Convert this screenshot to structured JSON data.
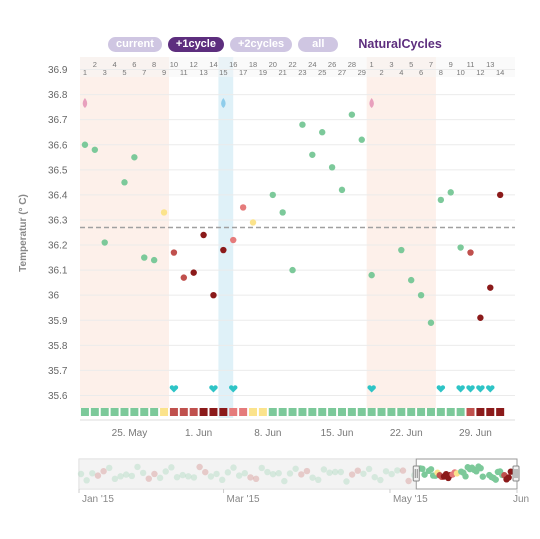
{
  "header": {
    "buttons": [
      {
        "label": "current",
        "active": false
      },
      {
        "label": "+1cycle",
        "active": true
      },
      {
        "label": "+2cycles",
        "active": false
      },
      {
        "label": "all",
        "active": false
      }
    ],
    "brand": "NaturalCycles"
  },
  "colors": {
    "purple": "#5d2e7e",
    "pill_inactive": "#cfc6e2",
    "green": "#7cc99a",
    "light_red": "#e57b7b",
    "red": "#c0504d",
    "dark_red": "#8b1a1a",
    "yellow": "#fbe38c",
    "pink_drop": "#e8a0bd",
    "blue_drop": "#8fcdeb",
    "heart": "#2ec4c6",
    "period_band": "#fdf0ea",
    "ovulation_band": "#dff1f8",
    "coverline": "#a0a0a0"
  },
  "chart_data": {
    "type": "scatter",
    "ylabel": "Temperatur (° C)",
    "ylim": [
      35.55,
      36.95
    ],
    "y_ticks": [
      "36.9",
      "36.8",
      "36.7",
      "36.6",
      "36.5",
      "36.4",
      "36.3",
      "36.2",
      "36.1",
      "36",
      "35.9",
      "35.8",
      "35.7",
      "35.6"
    ],
    "day_range": [
      0,
      43
    ],
    "coverline": 36.27,
    "cycle_day_top": [
      1,
      2,
      3,
      4,
      5,
      6,
      7,
      8,
      9,
      10,
      11,
      12,
      13,
      14,
      15,
      16,
      17,
      18,
      19,
      20,
      21,
      22,
      23,
      24,
      25,
      26,
      27,
      28,
      29,
      1,
      2,
      3,
      4,
      5,
      6,
      7,
      8,
      9,
      10,
      11,
      12,
      13,
      14
    ],
    "date_ticks": [
      {
        "day": 4.5,
        "label": "25. May"
      },
      {
        "day": 11.5,
        "label": "1. Jun"
      },
      {
        "day": 18.5,
        "label": "8. Jun"
      },
      {
        "day": 25.5,
        "label": "15. Jun"
      },
      {
        "day": 32.5,
        "label": "22. Jun"
      },
      {
        "day": 39.5,
        "label": "29. Jun"
      }
    ],
    "period_bands": [
      [
        0,
        8
      ],
      [
        29,
        35
      ]
    ],
    "ovulation_band": [
      14,
      15
    ],
    "drops": [
      {
        "day": 0,
        "type": "period"
      },
      {
        "day": 14,
        "type": "ovulation"
      },
      {
        "day": 29,
        "type": "period"
      }
    ],
    "hearts": [
      9,
      13,
      15,
      29,
      36,
      38,
      39,
      40,
      41
    ],
    "points": [
      {
        "day": 0,
        "temp": 36.6,
        "c": "green"
      },
      {
        "day": 1,
        "temp": 36.58,
        "c": "green"
      },
      {
        "day": 2,
        "temp": 36.21,
        "c": "green"
      },
      {
        "day": 4,
        "temp": 36.45,
        "c": "green"
      },
      {
        "day": 5,
        "temp": 36.55,
        "c": "green"
      },
      {
        "day": 6,
        "temp": 36.15,
        "c": "green"
      },
      {
        "day": 7,
        "temp": 36.14,
        "c": "green"
      },
      {
        "day": 8,
        "temp": 36.33,
        "c": "yellow"
      },
      {
        "day": 9,
        "temp": 36.17,
        "c": "red"
      },
      {
        "day": 10,
        "temp": 36.07,
        "c": "red"
      },
      {
        "day": 11,
        "temp": 36.09,
        "c": "dark_red"
      },
      {
        "day": 12,
        "temp": 36.24,
        "c": "dark_red"
      },
      {
        "day": 13,
        "temp": 36.0,
        "c": "dark_red"
      },
      {
        "day": 14,
        "temp": 36.18,
        "c": "dark_red"
      },
      {
        "day": 15,
        "temp": 36.22,
        "c": "light_red"
      },
      {
        "day": 16,
        "temp": 36.35,
        "c": "light_red"
      },
      {
        "day": 17,
        "temp": 36.29,
        "c": "yellow"
      },
      {
        "day": 19,
        "temp": 36.4,
        "c": "green"
      },
      {
        "day": 20,
        "temp": 36.33,
        "c": "green"
      },
      {
        "day": 21,
        "temp": 36.1,
        "c": "green"
      },
      {
        "day": 22,
        "temp": 36.68,
        "c": "green"
      },
      {
        "day": 23,
        "temp": 36.56,
        "c": "green"
      },
      {
        "day": 24,
        "temp": 36.65,
        "c": "green"
      },
      {
        "day": 25,
        "temp": 36.51,
        "c": "green"
      },
      {
        "day": 26,
        "temp": 36.42,
        "c": "green"
      },
      {
        "day": 27,
        "temp": 36.72,
        "c": "green"
      },
      {
        "day": 28,
        "temp": 36.62,
        "c": "green"
      },
      {
        "day": 29,
        "temp": 36.08,
        "c": "green"
      },
      {
        "day": 32,
        "temp": 36.18,
        "c": "green"
      },
      {
        "day": 33,
        "temp": 36.06,
        "c": "green"
      },
      {
        "day": 34,
        "temp": 36.0,
        "c": "green"
      },
      {
        "day": 35,
        "temp": 35.89,
        "c": "green"
      },
      {
        "day": 36,
        "temp": 36.38,
        "c": "green"
      },
      {
        "day": 37,
        "temp": 36.41,
        "c": "green"
      },
      {
        "day": 38,
        "temp": 36.19,
        "c": "green"
      },
      {
        "day": 39,
        "temp": 36.17,
        "c": "red"
      },
      {
        "day": 40,
        "temp": 35.91,
        "c": "dark_red"
      },
      {
        "day": 41,
        "temp": 36.03,
        "c": "dark_red"
      },
      {
        "day": 42,
        "temp": 36.4,
        "c": "dark_red"
      }
    ],
    "status_squares": [
      "green",
      "green",
      "green",
      "green",
      "green",
      "green",
      "green",
      "green",
      "yellow",
      "red",
      "red",
      "red",
      "dark_red",
      "dark_red",
      "dark_red",
      "light_red",
      "light_red",
      "yellow",
      "yellow",
      "green",
      "green",
      "green",
      "green",
      "green",
      "green",
      "green",
      "green",
      "green",
      "green",
      "green",
      "green",
      "green",
      "green",
      "green",
      "green",
      "green",
      "green",
      "green",
      "green",
      "red",
      "dark_red",
      "dark_red",
      "dark_red"
    ],
    "navigator": {
      "ticks": [
        {
          "pos": 0.0,
          "label": "Jan '15"
        },
        {
          "pos": 0.33,
          "label": "Mar '15"
        },
        {
          "pos": 0.71,
          "label": "May '15"
        },
        {
          "pos": 1.0,
          "label": "Jun"
        }
      ],
      "window": [
        0.77,
        1.0
      ]
    }
  }
}
